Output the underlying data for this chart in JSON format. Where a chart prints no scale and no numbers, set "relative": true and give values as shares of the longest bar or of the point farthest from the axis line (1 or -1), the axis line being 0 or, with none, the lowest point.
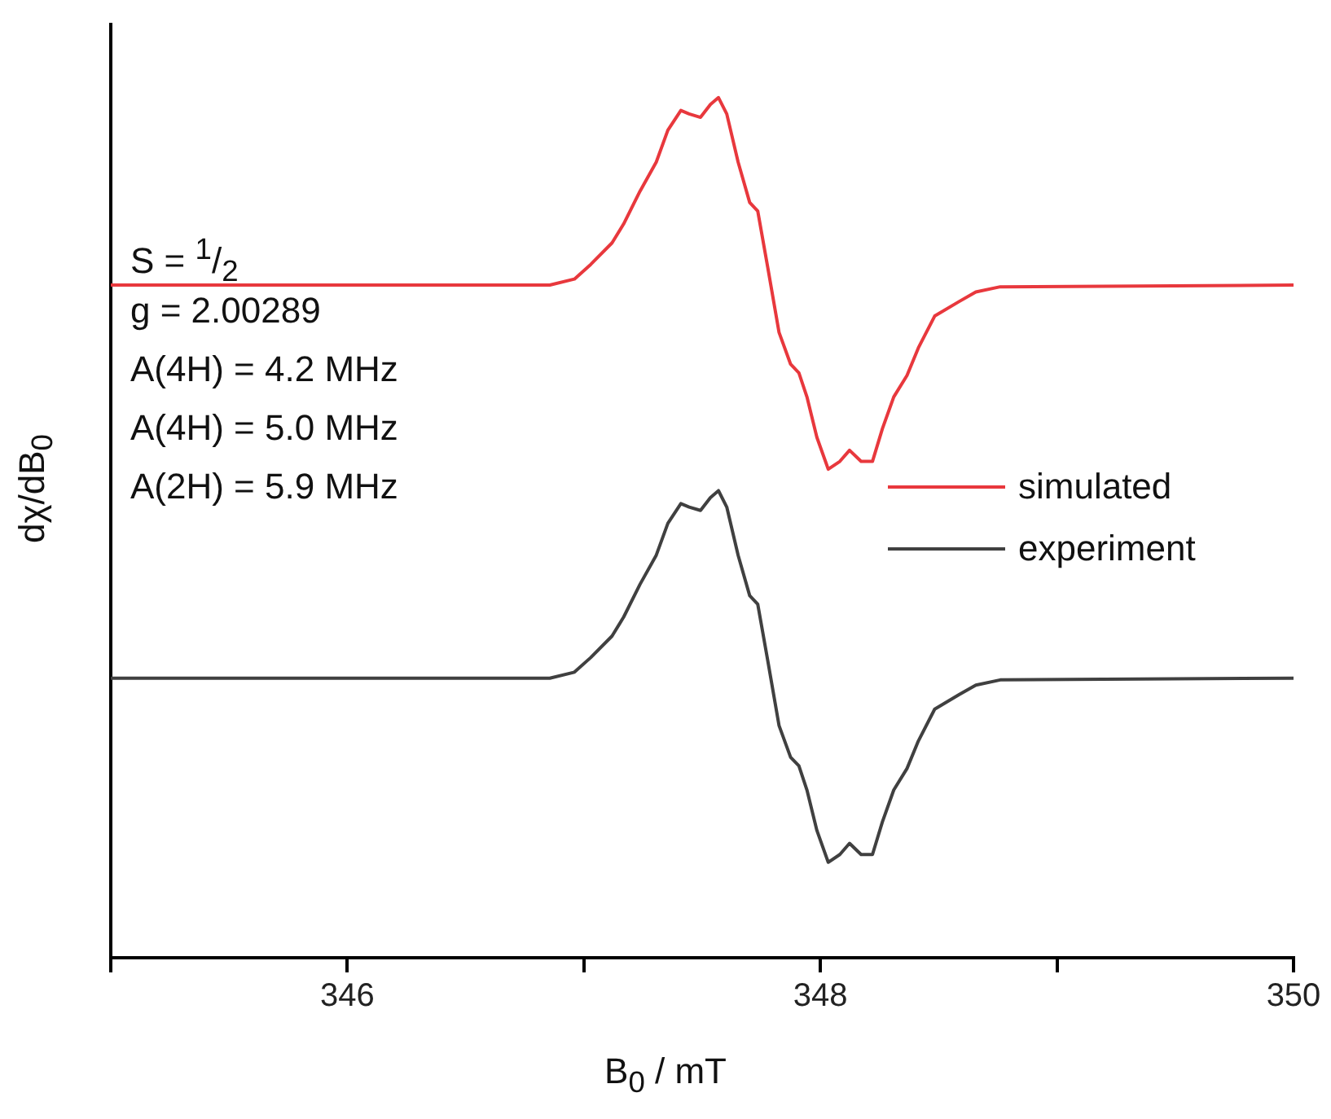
{
  "chart_data": {
    "type": "line",
    "relative": true,
    "xlabel": "B$_{0}$ / mT",
    "ylabel": "dχ/dB$_{0}$",
    "xlim": [
      345,
      350
    ],
    "xticks": [
      {
        "value": 345,
        "label": null
      },
      346,
      {
        "value": 347,
        "label": null
      },
      348,
      {
        "value": 349,
        "label": null
      },
      350
    ],
    "x": [
      345,
      346.856,
      346.96,
      347.029,
      347.119,
      347.168,
      347.237,
      347.306,
      347.355,
      347.41,
      347.445,
      347.493,
      347.535,
      347.569,
      347.604,
      347.652,
      347.701,
      347.735,
      347.777,
      347.825,
      347.874,
      347.909,
      347.943,
      347.985,
      348.033,
      348.082,
      348.123,
      348.172,
      348.22,
      348.262,
      348.31,
      348.366,
      348.414,
      348.483,
      348.587,
      348.657,
      348.76,
      350
    ],
    "series": [
      {
        "name": "simulated",
        "color": "#e8383d",
        "values": [
          0.782,
          0.782,
          0.789,
          0.806,
          0.831,
          0.853,
          0.891,
          0.925,
          0.962,
          0.985,
          0.981,
          0.977,
          0.992,
          1,
          0.981,
          0.925,
          0.878,
          0.868,
          0.803,
          0.727,
          0.69,
          0.68,
          0.652,
          0.605,
          0.568,
          0.577,
          0.59,
          0.577,
          0.577,
          0.615,
          0.652,
          0.677,
          0.709,
          0.746,
          0.763,
          0.774,
          0.78,
          0.782
        ]
      },
      {
        "name": "experiment",
        "color": "#404040",
        "values": [
          0.325,
          0.325,
          0.332,
          0.349,
          0.374,
          0.396,
          0.434,
          0.468,
          0.505,
          0.528,
          0.524,
          0.52,
          0.535,
          0.543,
          0.524,
          0.468,
          0.421,
          0.411,
          0.346,
          0.27,
          0.233,
          0.223,
          0.195,
          0.148,
          0.111,
          0.12,
          0.133,
          0.12,
          0.12,
          0.158,
          0.195,
          0.22,
          0.252,
          0.289,
          0.306,
          0.317,
          0.323,
          0.325
        ]
      }
    ],
    "annotations": [
      "S = $^{1}$/$_{2}$",
      "g = 2.00289",
      "A(4H) = 4.2 MHz",
      "A(4H) = 5.0 MHz",
      "A(2H) = 5.9 MHz"
    ],
    "legend": "right",
    "marker": "none",
    "line_style": "solid"
  }
}
